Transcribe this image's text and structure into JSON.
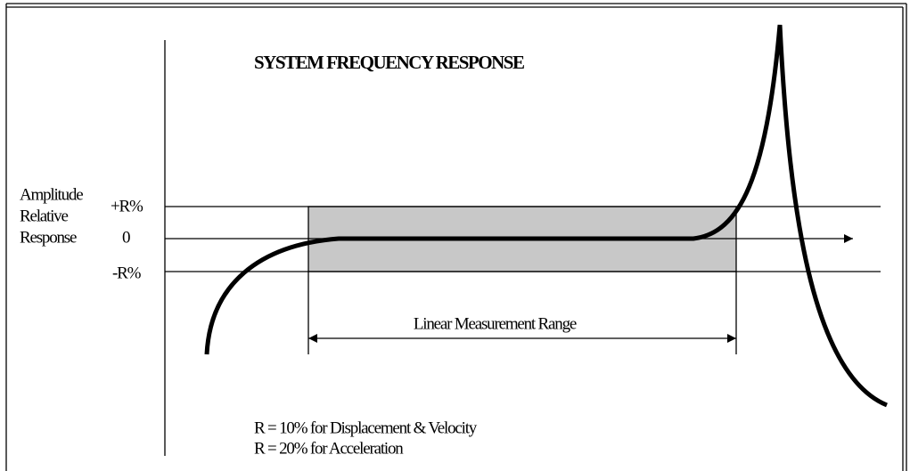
{
  "title": "SYSTEM FREQUENCY RESPONSE",
  "axis_label": [
    "Amplitude",
    "Relative",
    "Response"
  ],
  "levels": [
    "+R%",
    "0",
    "-R%"
  ],
  "range_label": "Linear Measurement Range",
  "notes": [
    "R = 10% for Displacement & Velocity",
    "R = 20% for Acceleration"
  ]
}
